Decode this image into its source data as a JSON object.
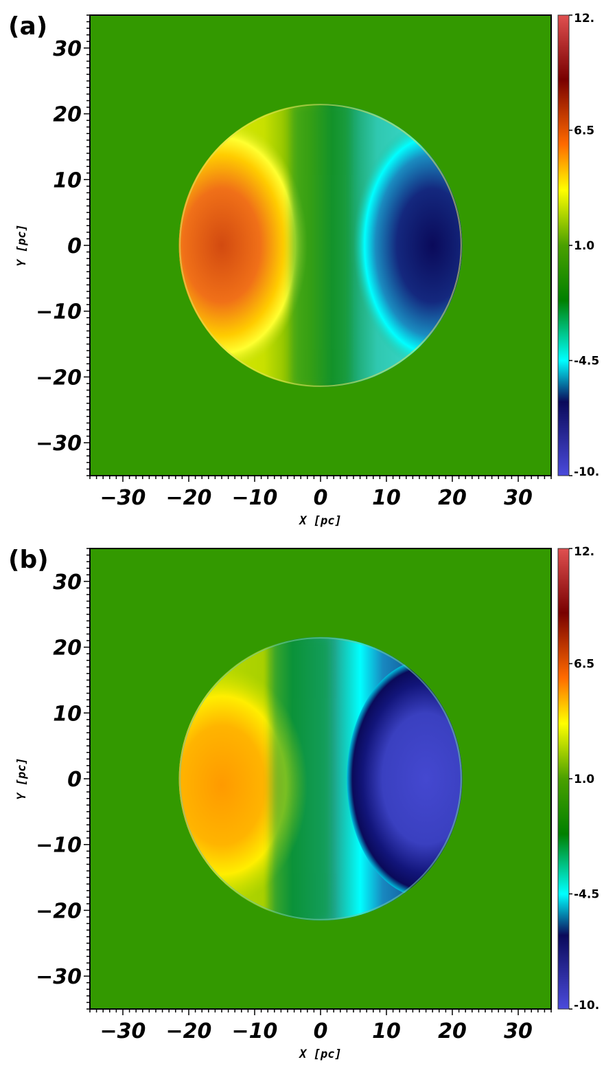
{
  "chart_data": [
    {
      "type": "heatmap",
      "panel_label": "(a)",
      "xlabel": "X [pc]",
      "ylabel": "Y [pc]",
      "xlim": [
        -35,
        35
      ],
      "ylim": [
        -35,
        35
      ],
      "xticks": [
        -30,
        -20,
        -10,
        0,
        10,
        20,
        30
      ],
      "yticks": [
        30,
        20,
        10,
        0,
        -10,
        -20,
        -30
      ],
      "background_value": 0.0,
      "disk": {
        "center": [
          0,
          0
        ],
        "radius_pc": 21.5
      },
      "colorbar": {
        "min": -10,
        "max": 12,
        "tick_values": [
          12,
          6.5,
          1.0,
          -4.5,
          -10
        ],
        "tick_labels": [
          "12.",
          "6.5",
          "1.0",
          "-4.5",
          "-10."
        ],
        "colors": [
          "#4b4bdc",
          "#0a0a5a",
          "#00ffff",
          "#008000",
          "#ffff00",
          "#ff6a00",
          "#780000",
          "#e05050"
        ]
      },
      "features": [
        {
          "region": "west lobe",
          "center": [
            -15,
            0
          ],
          "value": 6.0
        },
        {
          "region": "central band",
          "center": [
            0,
            0
          ],
          "value": 0.0
        },
        {
          "region": "east lobe",
          "center": [
            17,
            0
          ],
          "value": -7.5
        }
      ]
    },
    {
      "type": "heatmap",
      "panel_label": "(b)",
      "xlabel": "X [pc]",
      "ylabel": "Y [pc]",
      "xlim": [
        -35,
        35
      ],
      "ylim": [
        -35,
        35
      ],
      "xticks": [
        -30,
        -20,
        -10,
        0,
        10,
        20,
        30
      ],
      "yticks": [
        30,
        20,
        10,
        0,
        -10,
        -20,
        -30
      ],
      "background_value": 0.0,
      "disk": {
        "center": [
          0,
          0
        ],
        "radius_pc": 21.5
      },
      "colorbar": {
        "min": -10,
        "max": 12,
        "tick_values": [
          12,
          6.5,
          1.0,
          -4.5,
          -10
        ],
        "tick_labels": [
          "12.",
          "6.5",
          "1.0",
          "-4.5",
          "-10."
        ],
        "colors": [
          "#4b4bdc",
          "#0a0a5a",
          "#00ffff",
          "#008000",
          "#ffff00",
          "#ff6a00",
          "#780000",
          "#e05050"
        ]
      },
      "features": [
        {
          "region": "west lobe",
          "center": [
            -15,
            -1
          ],
          "value": 4.0
        },
        {
          "region": "central band",
          "center": [
            -3,
            0
          ],
          "value": -1.5
        },
        {
          "region": "east lobe",
          "center": [
            16,
            0
          ],
          "value": -9.0
        }
      ]
    }
  ]
}
